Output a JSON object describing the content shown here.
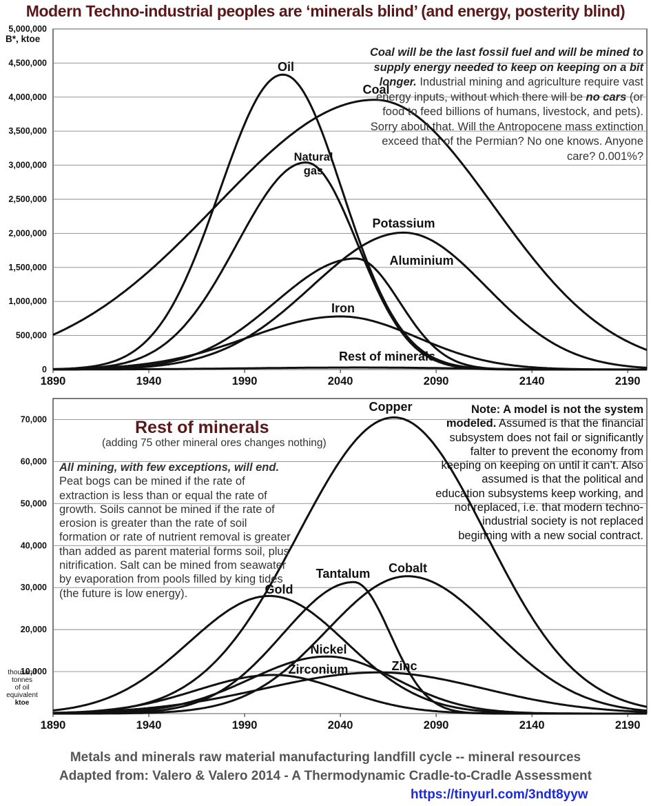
{
  "title": "Modern Techno-industrial peoples are ‘minerals blind’ (and energy, posterity blind)",
  "top_note": {
    "bold": "Coal will be the last fossil fuel and will be mined to supply energy needed to  keep  on keeping on a bit longer.",
    "part2": " Industrial mining and agriculture require vast energy inputs, without which there will be ",
    "bold2": "no cars",
    "part3": " (or food to feed billions of humans, livestock, and pets). Sorry about that. Will the Antropocene mass extinction exceed that of the Permian? No one knows. Anyone care? 0.001%?"
  },
  "rest_title": "Rest of minerals",
  "rest_subtitle": "(adding 75 other mineral ores changes nothing)",
  "left_note": {
    "bold": "All mining, with few exceptions, will end.",
    "text": " Peat bogs can be mined if the rate of extraction is less than or equal the rate of growth. Soils cannot be mined if the rate of erosion is greater than the rate of soil formation or rate of nutrient removal is greater than added as parent material forms soil, plus nitrification. Salt can be mined from seawater by evaporation from pools filled by king tides (the future is low energy)."
  },
  "right_note": {
    "bold": "Note:  A model is not the system modeled.",
    "text": "  Assumed is that the financial subsystem does not fail or significantly falter to prevent the economy from keeping on keeping on until it can’t. Also assumed is that the political and education subsystems keep working, and not replaced, i.e. that modern techno-industrial society is not replaced beginning with a new social contract."
  },
  "footer": {
    "line1": "Metals and minerals raw material manufacturing landfill cycle -- mineral resources",
    "line2": "Adapted from: Valero & Valero 2014 - A Thermodynamic Cradle-to-Cradle Assessment",
    "url": "https://tinyurl.com/3ndt8yyw"
  },
  "ktoe_label": [
    "thousand",
    "tonnes",
    "of oil",
    "equivalent",
    "ktoe"
  ],
  "chart_data": [
    {
      "type": "line",
      "title": "Modern Techno-industrial peoples are ‘minerals blind’ (and energy, posterity blind)",
      "ylabel": "B*, ktoe",
      "xlabel": "",
      "xlim": [
        1890,
        2200
      ],
      "ylim": [
        0,
        5000000
      ],
      "x_ticks": [
        1890,
        1940,
        1990,
        2040,
        2090,
        2140,
        2190
      ],
      "y_ticks": [
        0,
        500000,
        1000000,
        1500000,
        2000000,
        2500000,
        3000000,
        3500000,
        4000000,
        4500000,
        5000000
      ],
      "y_tick_labels": [
        "0",
        "500,000",
        "1,000,000",
        "1,500,000",
        "2,000,000",
        "2,500,000",
        "3,000,000",
        "3,500,000",
        "4,000,000",
        "4,500,000",
        "5,000,000"
      ],
      "grid": true,
      "series": [
        {
          "name": "Oil",
          "label": "Oil",
          "peak_year": 2010,
          "peak": 4330000,
          "sd_left": 33,
          "sd_right": 31
        },
        {
          "name": "Coal",
          "label": "Coal",
          "peak_year": 2058,
          "peak": 3960000,
          "sd_left": 83,
          "sd_right": 62
        },
        {
          "name": "Natural gas",
          "label": "Natural gas",
          "peak_year": 2022,
          "peak": 3040000,
          "sd_left": 36,
          "sd_right": 27
        },
        {
          "name": "Potassium",
          "label": "Potassium",
          "peak_year": 2073,
          "peak": 2010000,
          "sd_left": 48,
          "sd_right": 43
        },
        {
          "name": "Aluminium",
          "label": "Aluminium",
          "peak_year": 2048,
          "peak": 1630000,
          "sd_left": 42,
          "sd_right": 23
        },
        {
          "name": "Iron",
          "label": "Iron",
          "peak_year": 2040,
          "peak": 780000,
          "sd_left": 48,
          "sd_right": 40
        },
        {
          "name": "Rest of minerals",
          "label": "Rest of minerals",
          "peak_year": 2050,
          "peak": 30000,
          "sd_left": 60,
          "sd_right": 50
        }
      ]
    },
    {
      "type": "line",
      "title": "Rest of minerals",
      "ylabel": "thousand tonnes of oil equivalent ktoe",
      "xlabel": "",
      "xlim": [
        1890,
        2200
      ],
      "ylim": [
        0,
        75000
      ],
      "x_ticks": [
        1890,
        1940,
        1990,
        2040,
        2090,
        2140,
        2190
      ],
      "y_ticks": [
        0,
        10000,
        20000,
        30000,
        40000,
        50000,
        60000,
        70000
      ],
      "y_tick_labels": [
        "",
        "10,000",
        "20,000",
        "30,000",
        "40,000",
        "50,000",
        "60,000",
        "70,000"
      ],
      "grid": true,
      "series": [
        {
          "name": "Copper",
          "label": "Copper",
          "peak_year": 2068,
          "peak": 70500,
          "sd_left": 50,
          "sd_right": 48
        },
        {
          "name": "Cobalt",
          "label": "Cobalt",
          "peak_year": 2075,
          "peak": 32700,
          "sd_left": 42,
          "sd_right": 45
        },
        {
          "name": "Tantalum",
          "label": "Tantalum",
          "peak_year": 2047,
          "peak": 31300,
          "sd_left": 37,
          "sd_right": 19
        },
        {
          "name": "Gold",
          "label": "Gold",
          "peak_year": 2003,
          "peak": 28000,
          "sd_left": 42,
          "sd_right": 40
        },
        {
          "name": "Nickel",
          "label": "Nickel",
          "peak_year": 2033,
          "peak": 13600,
          "sd_left": 40,
          "sd_right": 36
        },
        {
          "name": "Zinc",
          "label": "Zinc",
          "peak_year": 2060,
          "peak": 9800,
          "sd_left": 60,
          "sd_right": 55
        },
        {
          "name": "Zirconium",
          "label": "Zirconium",
          "peak_year": 2005,
          "peak": 9200,
          "sd_left": 40,
          "sd_right": 36
        }
      ]
    }
  ]
}
